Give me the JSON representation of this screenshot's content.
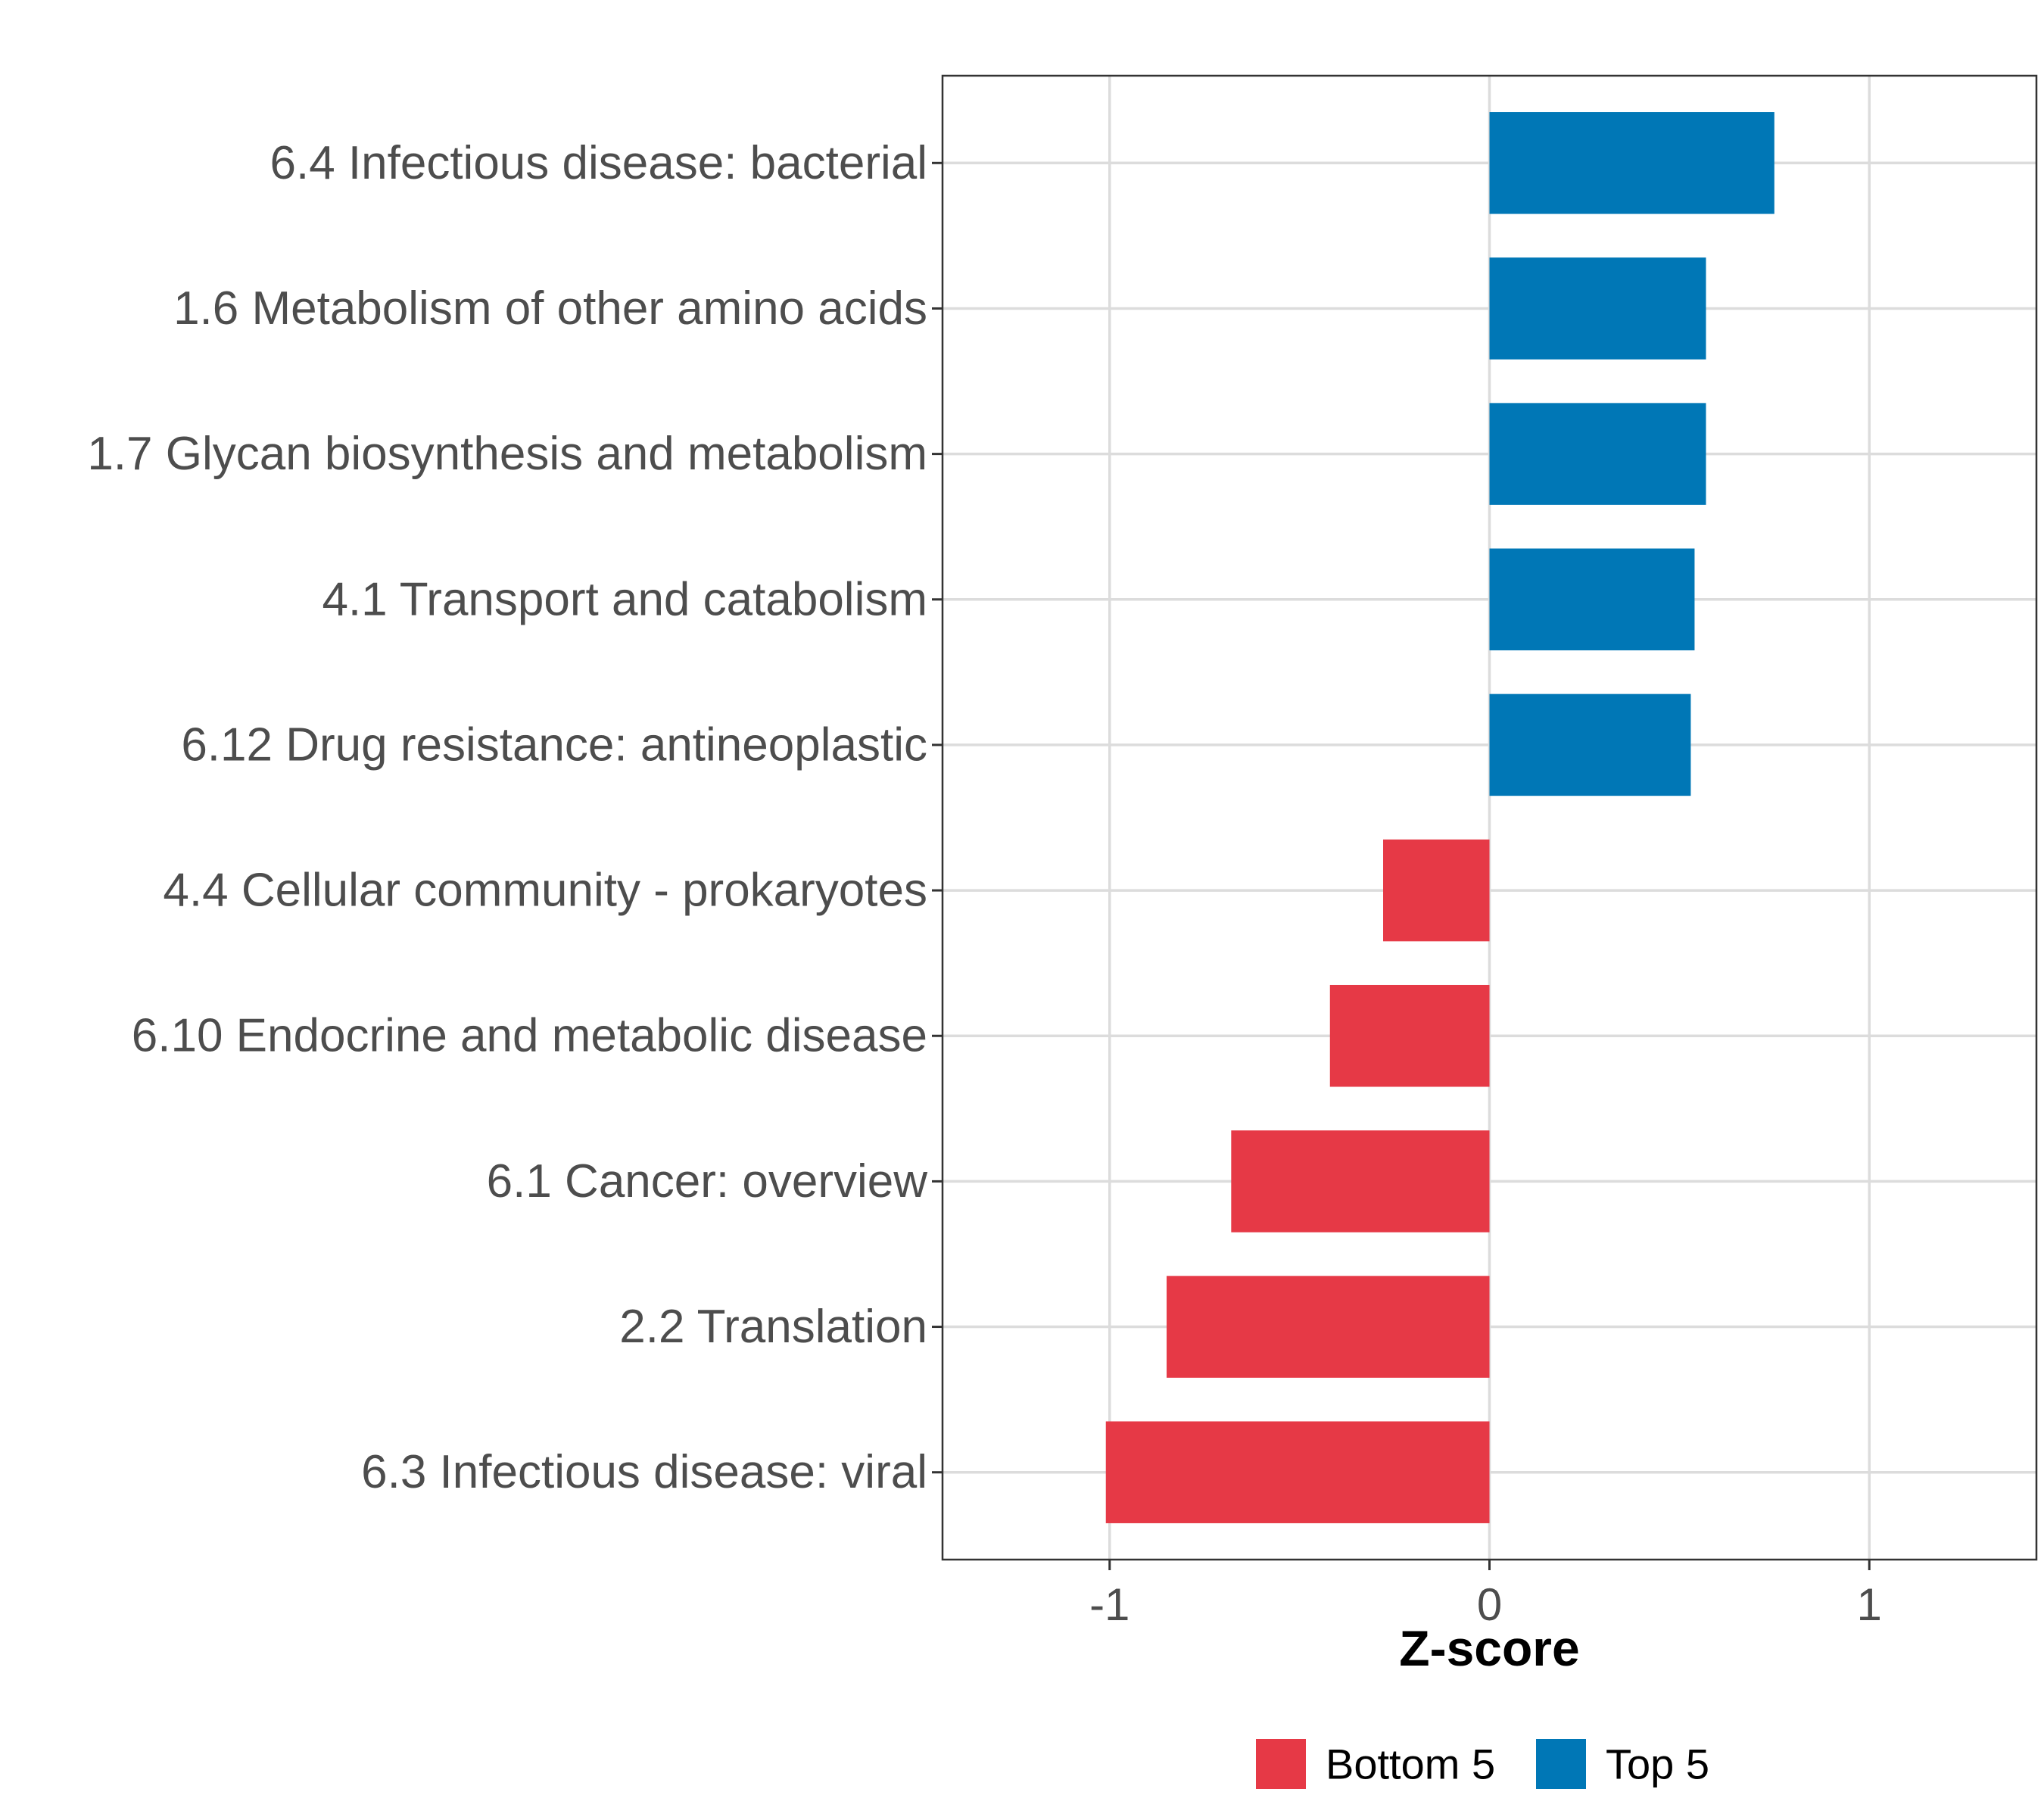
{
  "chart_data": {
    "type": "bar",
    "orientation": "horizontal",
    "categories": [
      "6.4 Infectious disease: bacterial",
      "1.6 Metabolism of other amino acids",
      "1.7 Glycan biosynthesis and metabolism",
      "4.1 Transport and catabolism",
      "6.12 Drug resistance: antineoplastic",
      "4.4 Cellular community - prokaryotes",
      "6.10 Endocrine and metabolic disease",
      "6.1 Cancer: overview",
      "2.2 Translation",
      "6.3 Infectious disease: viral"
    ],
    "values": [
      0.75,
      0.57,
      0.57,
      0.54,
      0.53,
      -0.28,
      -0.42,
      -0.68,
      -0.85,
      -1.01
    ],
    "groups": [
      "Top 5",
      "Top 5",
      "Top 5",
      "Top 5",
      "Top 5",
      "Bottom 5",
      "Bottom 5",
      "Bottom 5",
      "Bottom 5",
      "Bottom 5"
    ],
    "xlabel": "Z-score",
    "ylabel": "",
    "xlim": [
      -1.44,
      1.44
    ],
    "x_ticks": [
      -1,
      0,
      1
    ],
    "x_tick_labels": [
      "-1",
      "0",
      "1"
    ],
    "grid": true,
    "legend": {
      "position": "bottom",
      "entries": [
        {
          "name": "Bottom 5",
          "color": "#e63946"
        },
        {
          "name": "Top 5",
          "color": "#0077b6"
        }
      ]
    },
    "colors": {
      "Bottom 5": "#e63946",
      "Top 5": "#0077b6"
    }
  }
}
